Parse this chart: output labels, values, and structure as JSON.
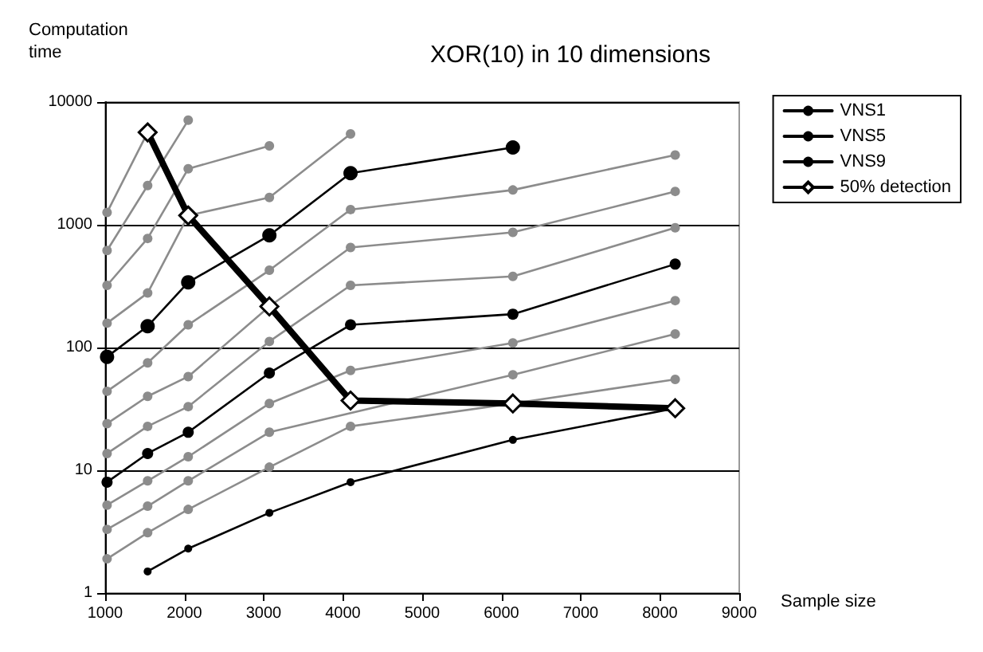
{
  "chart_data": {
    "type": "line",
    "title": "XOR(10) in 10 dimensions",
    "xlabel": "Sample size",
    "ylabel": "Computation time",
    "x": [
      1024,
      1536,
      2048,
      3072,
      4096,
      6144,
      8192
    ],
    "xlim": [
      1000,
      9000
    ],
    "xticks": [
      1000,
      2000,
      3000,
      4000,
      5000,
      6000,
      7000,
      8000,
      9000
    ],
    "ylim": [
      1,
      10000
    ],
    "yticks": [
      1,
      10,
      100,
      1000,
      10000
    ],
    "log": "y",
    "grid": "y",
    "legend": "right",
    "marker": "circle",
    "line_style": "solid",
    "series": [
      {
        "name": "VNS1",
        "color": "#000000",
        "values": [
          null,
          1.5,
          2.3,
          4.5,
          8.0,
          17.7,
          32
        ]
      },
      {
        "color": "#8c8c8c",
        "values": [
          1.9,
          3.1,
          4.8,
          10.6,
          22.8,
          35,
          55
        ]
      },
      {
        "color": "#8c8c8c",
        "values": [
          3.3,
          5.1,
          8.2,
          20.4,
          null,
          60,
          129
        ]
      },
      {
        "color": "#8c8c8c",
        "values": [
          5.2,
          8.2,
          12.9,
          35,
          65,
          109,
          241
        ]
      },
      {
        "name": "VNS5",
        "color": "#000000",
        "values": [
          8.0,
          13.7,
          20.4,
          62,
          153,
          187,
          478
        ]
      },
      {
        "color": "#8c8c8c",
        "values": [
          13.7,
          22.8,
          33,
          112,
          321,
          380,
          945
        ]
      },
      {
        "color": "#8c8c8c",
        "values": [
          24,
          40,
          58,
          216,
          653,
          867,
          1870
        ]
      },
      {
        "color": "#8c8c8c",
        "values": [
          44,
          75,
          153,
          426,
          1330,
          1920,
          3700
        ]
      },
      {
        "name": "VNS9",
        "color": "#000000",
        "values": [
          84,
          149,
          340,
          820,
          2630,
          4260,
          null
        ]
      },
      {
        "color": "#8c8c8c",
        "values": [
          158,
          278,
          1190,
          1670,
          5500,
          null,
          null
        ]
      },
      {
        "color": "#8c8c8c",
        "values": [
          321,
          774,
          2860,
          4390,
          null,
          null,
          null
        ]
      },
      {
        "color": "#8c8c8c",
        "values": [
          617,
          2090,
          7110,
          null,
          null,
          null,
          null
        ]
      },
      {
        "color": "#8c8c8c",
        "values": [
          1260,
          5660,
          null,
          null,
          null,
          null,
          null
        ]
      },
      {
        "name": "50% detection",
        "color": "#000000",
        "marker": "diamond",
        "values": [
          null,
          5660,
          1190,
          216,
          37,
          35,
          32
        ]
      }
    ]
  }
}
